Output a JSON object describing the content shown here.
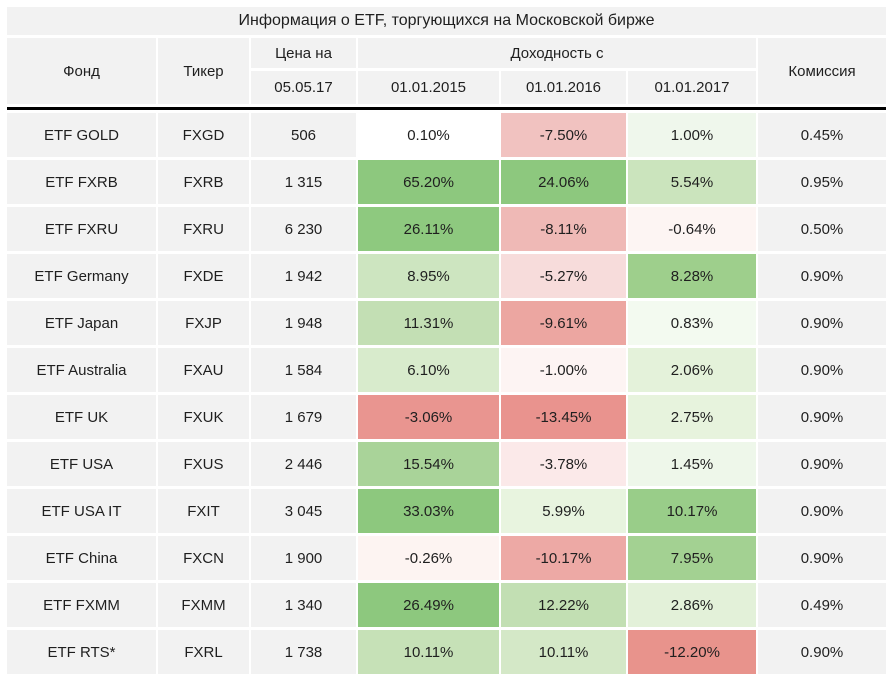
{
  "title": "Информация о ETF, торгующихся на Московской бирже",
  "header": {
    "fund": "Фонд",
    "ticker": "Тикер",
    "price_top": "Цена на",
    "price_bottom": "05.05.17",
    "returns_group": "Доходность с",
    "date_2015": "01.01.2015",
    "date_2016": "01.01.2016",
    "date_2017": "01.01.2017",
    "commission": "Комиссия"
  },
  "colors": {
    "table_bg": "#f2f2f2",
    "divider": "#000000",
    "text": "#1f1f1f",
    "heat_green_max": "#8dc87e",
    "heat_red_max": "#e9938e"
  },
  "rows": [
    {
      "fund": "ETF GOLD",
      "ticker": "FXGD",
      "price": "506",
      "r2015": "0.10%",
      "c2015": "#ffffff",
      "r2016": "-7.50%",
      "c2016": "#f1c2c0",
      "r2017": "1.00%",
      "c2017": "#eff7ec",
      "commission": "0.45%"
    },
    {
      "fund": "ETF FXRB",
      "ticker": "FXRB",
      "price": "1 315",
      "r2015": "65.20%",
      "c2015": "#8dc87e",
      "r2016": "24.06%",
      "c2016": "#8dc87e",
      "r2017": "5.54%",
      "c2017": "#cbe4bd",
      "commission": "0.95%"
    },
    {
      "fund": "ETF FXRU",
      "ticker": "FXRU",
      "price": "6 230",
      "r2015": "26.11%",
      "c2015": "#8ec97f",
      "r2016": "-8.11%",
      "c2016": "#efb9b6",
      "r2017": "-0.64%",
      "c2017": "#fdf5f3",
      "commission": "0.50%"
    },
    {
      "fund": "ETF Germany",
      "ticker": "FXDE",
      "price": "1 942",
      "r2015": "8.95%",
      "c2015": "#cde5c0",
      "r2016": "-5.27%",
      "c2016": "#f7dcdb",
      "r2017": "8.28%",
      "c2017": "#9ecf8c",
      "commission": "0.90%"
    },
    {
      "fund": "ETF Japan",
      "ticker": "FXJP",
      "price": "1 948",
      "r2015": "11.31%",
      "c2015": "#c3dfb4",
      "r2016": "-9.61%",
      "c2016": "#eca6a1",
      "r2017": "0.83%",
      "c2017": "#f3faf0",
      "commission": "0.90%"
    },
    {
      "fund": "ETF Australia",
      "ticker": "FXAU",
      "price": "1 584",
      "r2015": "6.10%",
      "c2015": "#d8ebcc",
      "r2016": "-1.00%",
      "c2016": "#fdf4f3",
      "r2017": "2.06%",
      "c2017": "#e4f2da",
      "commission": "0.90%"
    },
    {
      "fund": "ETF UK",
      "ticker": "FXUK",
      "price": "1 679",
      "r2015": "-3.06%",
      "c2015": "#e99590",
      "r2016": "-13.45%",
      "c2016": "#e9938e",
      "r2017": "2.75%",
      "c2017": "#e7f3dd",
      "commission": "0.90%"
    },
    {
      "fund": "ETF USA",
      "ticker": "FXUS",
      "price": "2 446",
      "r2015": "15.54%",
      "c2015": "#a9d399",
      "r2016": "-3.78%",
      "c2016": "#fbe9e9",
      "r2017": "1.45%",
      "c2017": "#eef7ea",
      "commission": "0.90%"
    },
    {
      "fund": "ETF USA IT",
      "ticker": "FXIT",
      "price": "3 045",
      "r2015": "33.03%",
      "c2015": "#8dc87e",
      "r2016": "5.99%",
      "c2016": "#e8f4df",
      "r2017": "10.17%",
      "c2017": "#99cd89",
      "commission": "0.90%"
    },
    {
      "fund": "ETF China",
      "ticker": "FXCN",
      "price": "1 900",
      "r2015": "-0.26%",
      "c2015": "#fdf4f2",
      "r2016": "-10.17%",
      "c2016": "#eda9a5",
      "r2017": "7.95%",
      "c2017": "#a3d192",
      "commission": "0.90%"
    },
    {
      "fund": "ETF FXMM",
      "ticker": "FXMM",
      "price": "1 340",
      "r2015": "26.49%",
      "c2015": "#8dc87e",
      "r2016": "12.22%",
      "c2016": "#c2dfb3",
      "r2017": "2.86%",
      "c2017": "#e3f1d9",
      "commission": "0.49%"
    },
    {
      "fund": "ETF RTS*",
      "ticker": "FXRL",
      "price": "1 738",
      "r2015": "10.11%",
      "c2015": "#c6e1b7",
      "r2016": "10.11%",
      "c2016": "#d4e8c7",
      "r2017": "-12.20%",
      "c2017": "#e8938c",
      "commission": "0.90%"
    }
  ],
  "chart_data": {
    "type": "table",
    "title": "Информация о ETF, торгующихся на Московской бирже",
    "columns": [
      "Фонд",
      "Тикер",
      "Цена на 05.05.17",
      "Доходность с 01.01.2015",
      "Доходность с 01.01.2016",
      "Доходность с 01.01.2017",
      "Комиссия"
    ],
    "rows": [
      [
        "ETF GOLD",
        "FXGD",
        506,
        "0.10%",
        "-7.50%",
        "1.00%",
        "0.45%"
      ],
      [
        "ETF FXRB",
        "FXRB",
        1315,
        "65.20%",
        "24.06%",
        "5.54%",
        "0.95%"
      ],
      [
        "ETF FXRU",
        "FXRU",
        6230,
        "26.11%",
        "-8.11%",
        "-0.64%",
        "0.50%"
      ],
      [
        "ETF Germany",
        "FXDE",
        1942,
        "8.95%",
        "-5.27%",
        "8.28%",
        "0.90%"
      ],
      [
        "ETF Japan",
        "FXJP",
        1948,
        "11.31%",
        "-9.61%",
        "0.83%",
        "0.90%"
      ],
      [
        "ETF Australia",
        "FXAU",
        1584,
        "6.10%",
        "-1.00%",
        "2.06%",
        "0.90%"
      ],
      [
        "ETF UK",
        "FXUK",
        1679,
        "-3.06%",
        "-13.45%",
        "2.75%",
        "0.90%"
      ],
      [
        "ETF USA",
        "FXUS",
        2446,
        "15.54%",
        "-3.78%",
        "1.45%",
        "0.90%"
      ],
      [
        "ETF USA IT",
        "FXIT",
        3045,
        "33.03%",
        "5.99%",
        "10.17%",
        "0.90%"
      ],
      [
        "ETF China",
        "FXCN",
        1900,
        "-0.26%",
        "-10.17%",
        "7.95%",
        "0.90%"
      ],
      [
        "ETF FXMM",
        "FXMM",
        1340,
        "26.49%",
        "12.22%",
        "2.86%",
        "0.49%"
      ],
      [
        "ETF RTS*",
        "FXRL",
        1738,
        "10.11%",
        "10.11%",
        "-12.20%",
        "0.90%"
      ]
    ],
    "layout": "heatmap-colored return columns, each column independently scaled red-white-green"
  }
}
